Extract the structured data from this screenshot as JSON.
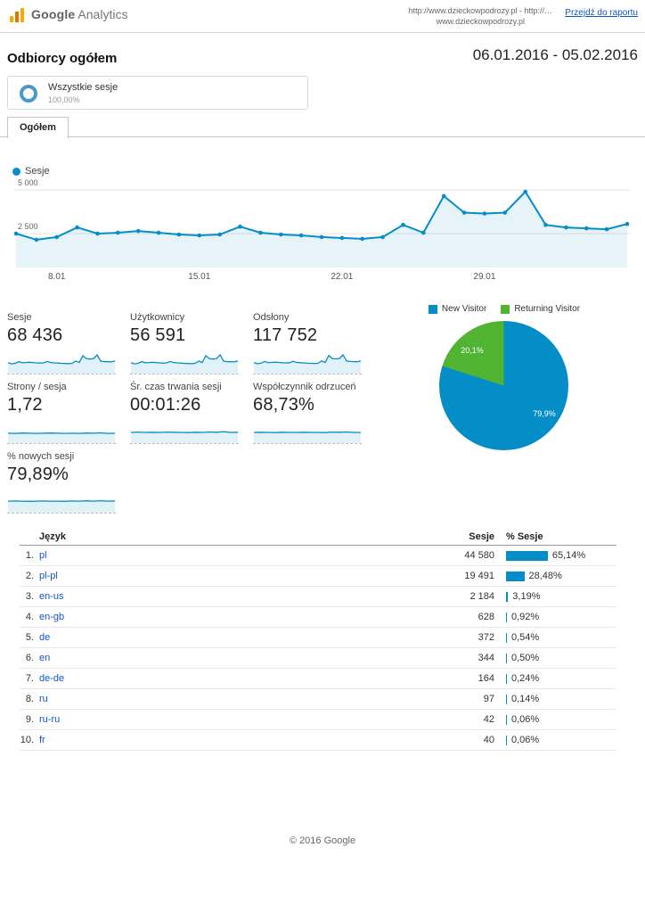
{
  "header": {
    "logo_google": "Google",
    "logo_analytics": "Analytics",
    "url_line1": "http://www.dzieckowpodrozy.pl - http://…",
    "url_line2": "www.dzieckowpodrozy.pl",
    "go_to_report": "Przejdź do raportu"
  },
  "report": {
    "title": "Odbiorcy ogółem",
    "date_range": "06.01.2016 - 05.02.2016"
  },
  "segment": {
    "name": "Wszystkie sesje",
    "percent": "100,00%"
  },
  "tabs": {
    "overview": "Ogółem"
  },
  "metrics": [
    {
      "label": "Sesje",
      "value": "68 436",
      "spark": [
        0.51,
        0.44,
        0.47,
        0.58,
        0.51,
        0.52,
        0.54,
        0.52,
        0.5,
        0.49,
        0.5,
        0.59,
        0.52,
        0.5,
        0.49,
        0.47,
        0.46,
        0.45,
        0.47,
        0.61,
        0.52,
        0.95,
        0.76,
        0.74,
        0.76,
        1,
        0.61,
        0.58,
        0.57,
        0.56,
        0.62
      ]
    },
    {
      "label": "Użytkownicy",
      "value": "56 591",
      "spark": [
        0.51,
        0.44,
        0.47,
        0.58,
        0.51,
        0.52,
        0.54,
        0.52,
        0.5,
        0.49,
        0.5,
        0.59,
        0.52,
        0.5,
        0.49,
        0.47,
        0.46,
        0.45,
        0.47,
        0.61,
        0.52,
        0.95,
        0.76,
        0.74,
        0.76,
        1,
        0.61,
        0.58,
        0.57,
        0.56,
        0.62
      ]
    },
    {
      "label": "Odsłony",
      "value": "117 752",
      "spark": [
        0.52,
        0.45,
        0.48,
        0.59,
        0.52,
        0.53,
        0.55,
        0.53,
        0.51,
        0.5,
        0.51,
        0.6,
        0.53,
        0.51,
        0.5,
        0.48,
        0.47,
        0.46,
        0.48,
        0.62,
        0.53,
        0.96,
        0.77,
        0.75,
        0.77,
        1,
        0.62,
        0.59,
        0.58,
        0.57,
        0.63
      ]
    },
    {
      "label": "Strony / sesja",
      "value": "1,72",
      "spark": [
        0.45,
        0.44,
        0.46,
        0.45,
        0.44,
        0.45,
        0.46,
        0.45,
        0.44,
        0.45,
        0.44,
        0.46,
        0.45,
        0.47,
        0.44,
        0.45
      ]
    },
    {
      "label": "Śr. czas trwania sesji",
      "value": "00:01:26",
      "spark": [
        0.5,
        0.52,
        0.5,
        0.51,
        0.5,
        0.52,
        0.51,
        0.5,
        0.49,
        0.51,
        0.5,
        0.53,
        0.51,
        0.55,
        0.5,
        0.51
      ]
    },
    {
      "label": "Współczynnik odrzuceń",
      "value": "68,73%",
      "spark": [
        0.5,
        0.51,
        0.5,
        0.49,
        0.51,
        0.5,
        0.5,
        0.51,
        0.5,
        0.5,
        0.49,
        0.52,
        0.51,
        0.53,
        0.5,
        0.5
      ]
    },
    {
      "label": "% nowych sesji",
      "value": "79,89%",
      "spark": [
        0.55,
        0.56,
        0.55,
        0.54,
        0.55,
        0.56,
        0.55,
        0.55,
        0.54,
        0.56,
        0.55,
        0.57,
        0.55,
        0.58,
        0.55,
        0.56
      ]
    }
  ],
  "language_table": {
    "headers": {
      "language": "Język",
      "sessions": "Sesje",
      "percent": "% Sesje"
    },
    "rows": [
      {
        "rank": "1.",
        "language": "pl",
        "sessions": "44 580",
        "percent": 65.14,
        "percent_display": "65,14%"
      },
      {
        "rank": "2.",
        "language": "pl-pl",
        "sessions": "19 491",
        "percent": 28.48,
        "percent_display": "28,48%"
      },
      {
        "rank": "3.",
        "language": "en-us",
        "sessions": "2 184",
        "percent": 3.19,
        "percent_display": "3,19%"
      },
      {
        "rank": "4.",
        "language": "en-gb",
        "sessions": "628",
        "percent": 0.92,
        "percent_display": "0,92%"
      },
      {
        "rank": "5.",
        "language": "de",
        "sessions": "372",
        "percent": 0.54,
        "percent_display": "0,54%"
      },
      {
        "rank": "6.",
        "language": "en",
        "sessions": "344",
        "percent": 0.5,
        "percent_display": "0,50%"
      },
      {
        "rank": "7.",
        "language": "de-de",
        "sessions": "164",
        "percent": 0.24,
        "percent_display": "0,24%"
      },
      {
        "rank": "8.",
        "language": "ru",
        "sessions": "97",
        "percent": 0.14,
        "percent_display": "0,14%"
      },
      {
        "rank": "9.",
        "language": "ru-ru",
        "sessions": "42",
        "percent": 0.06,
        "percent_display": "0,06%"
      },
      {
        "rank": "10.",
        "language": "fr",
        "sessions": "40",
        "percent": 0.06,
        "percent_display": "0,06%"
      }
    ]
  },
  "footer": {
    "copyright": "© 2016 Google"
  },
  "colors": {
    "accent_blue": "#058dc7",
    "green": "#50b432",
    "link": "#1155cc",
    "logo_orange": "#f9ab00"
  },
  "chart_data": [
    {
      "type": "area",
      "title": "Sesje",
      "x": [
        "06.01",
        "07.01",
        "08.01",
        "09.01",
        "10.01",
        "11.01",
        "12.01",
        "13.01",
        "14.01",
        "15.01",
        "16.01",
        "17.01",
        "18.01",
        "19.01",
        "20.01",
        "21.01",
        "22.01",
        "23.01",
        "24.01",
        "25.01",
        "26.01",
        "27.01",
        "28.01",
        "29.01",
        "30.01",
        "31.01",
        "01.02",
        "02.02",
        "03.02",
        "04.02",
        "05.02"
      ],
      "values": [
        2500,
        2150,
        2300,
        2850,
        2500,
        2550,
        2650,
        2550,
        2450,
        2400,
        2450,
        2900,
        2550,
        2450,
        2400,
        2300,
        2250,
        2200,
        2300,
        3000,
        2550,
        4650,
        3700,
        3650,
        3700,
        4900,
        3000,
        2850,
        2800,
        2750,
        3050
      ],
      "ylim": [
        0,
        5500
      ],
      "y_gridlines": [
        5000,
        2500
      ],
      "y_tick_labels": [
        "5 000",
        "2 500"
      ],
      "x_tick_labels": [
        "8.01",
        "15.01",
        "22.01",
        "29.01"
      ],
      "x_tick_indices": [
        2,
        9,
        16,
        23
      ],
      "color": "#058dc7",
      "grid": true,
      "legend_position": "top-left"
    },
    {
      "type": "pie",
      "labels": [
        "New Visitor",
        "Returning Visitor"
      ],
      "values": [
        79.9,
        20.1
      ],
      "display": [
        "79,9%",
        "20,1%"
      ],
      "colors": [
        "#058dc7",
        "#50b432"
      ],
      "legend_position": "top"
    }
  ]
}
